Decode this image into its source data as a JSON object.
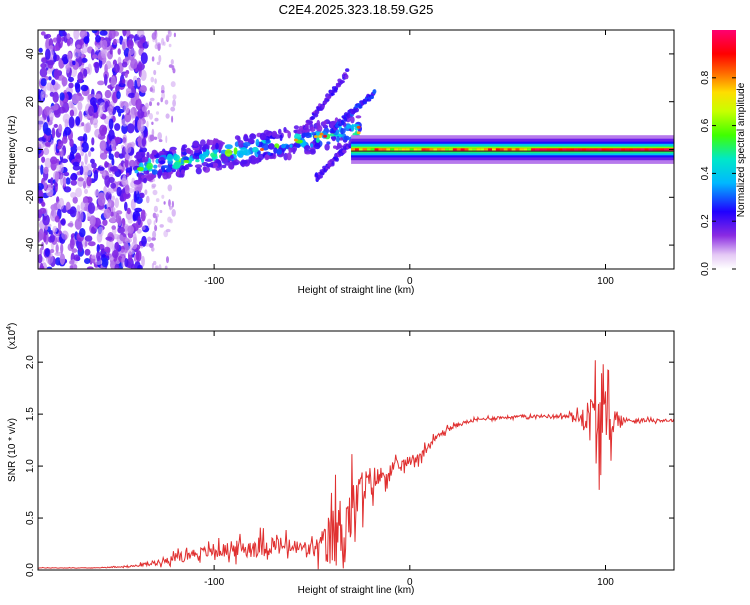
{
  "title": "C2E4.2025.323.18.59.G25",
  "colorbar": {
    "label": "Normalized spectral amplitude",
    "ticks": [
      "0.0",
      "0.2",
      "0.4",
      "0.6",
      "0.8"
    ],
    "tick_values": [
      0.0,
      0.2,
      0.4,
      0.6,
      0.8
    ],
    "range": [
      0,
      1
    ]
  },
  "chart_data": [
    {
      "type": "heatmap",
      "name": "spectrogram",
      "xlabel": "Height of straight line (km)",
      "ylabel": "Frequency (Hz)",
      "xlim": [
        -190,
        135
      ],
      "ylim": [
        -50,
        50
      ],
      "xticks": [
        -100,
        0,
        100
      ],
      "xtick_labels": [
        "-100",
        "0",
        "100"
      ],
      "yticks": [
        -40,
        -20,
        0,
        20,
        40
      ],
      "ytick_labels": [
        "-40",
        "-20",
        "0",
        "20",
        "40"
      ],
      "features": [
        {
          "name": "scatter-noise-region",
          "x_range": [
            -190,
            -135
          ],
          "y_range": [
            -50,
            50
          ],
          "amplitude": 0.2
        },
        {
          "name": "drifting-band-segment",
          "x_start": -140,
          "x_end": -25,
          "freq_start": -8,
          "freq_end": 8,
          "amplitude": 0.6
        },
        {
          "name": "rising-streak",
          "x_start": -55,
          "x_end": -32,
          "freq_start": 8,
          "freq_end": 32,
          "amplitude": 0.2
        },
        {
          "name": "rising-streak",
          "x_start": -40,
          "x_end": -18,
          "freq_start": 8,
          "freq_end": 24,
          "amplitude": 0.25
        },
        {
          "name": "descending-streak",
          "x_start": -48,
          "x_end": -28,
          "freq_start": -12,
          "freq_end": 4,
          "amplitude": 0.2
        },
        {
          "name": "steady-carrier-line",
          "x_start": -30,
          "x_end": 135,
          "freq": 0,
          "amplitude": 1.0
        }
      ]
    },
    {
      "type": "line",
      "name": "snr",
      "xlabel": "Height of straight line (km)",
      "ylabel": "SNR (10 * v/v)",
      "scale_label": "(x10",
      "scale_exp": "4",
      "scale_close": ")",
      "xlim": [
        -190,
        135
      ],
      "ylim": [
        0,
        2.3
      ],
      "xticks": [
        -100,
        0,
        100
      ],
      "xtick_labels": [
        "-100",
        "0",
        "100"
      ],
      "yticks": [
        0.0,
        0.5,
        1.0,
        1.5,
        2.0
      ],
      "ytick_labels": [
        "0.0",
        "0.5",
        "1.0",
        "1.5",
        "2.0"
      ],
      "color": "#e03030",
      "x": [
        -190,
        -175,
        -160,
        -150,
        -140,
        -130,
        -120,
        -110,
        -100,
        -90,
        -80,
        -70,
        -60,
        -50,
        -45,
        -40,
        -35,
        -30,
        -25,
        -20,
        -15,
        -10,
        -5,
        0,
        5,
        10,
        15,
        20,
        25,
        30,
        40,
        50,
        60,
        70,
        80,
        85,
        90,
        95,
        100,
        105,
        110,
        120,
        135
      ],
      "baseline": [
        0.02,
        0.02,
        0.02,
        0.03,
        0.04,
        0.07,
        0.12,
        0.16,
        0.18,
        0.2,
        0.22,
        0.24,
        0.22,
        0.2,
        0.22,
        0.3,
        0.4,
        0.55,
        0.75,
        0.85,
        0.9,
        0.95,
        1.0,
        1.05,
        1.1,
        1.2,
        1.3,
        1.36,
        1.4,
        1.43,
        1.46,
        1.47,
        1.48,
        1.48,
        1.48,
        1.47,
        1.47,
        1.45,
        1.45,
        1.44,
        1.44,
        1.44,
        1.44
      ],
      "amplitude": [
        0.005,
        0.005,
        0.005,
        0.01,
        0.02,
        0.05,
        0.08,
        0.1,
        0.12,
        0.15,
        0.2,
        0.2,
        0.15,
        0.15,
        0.3,
        0.6,
        0.7,
        0.6,
        0.4,
        0.3,
        0.2,
        0.15,
        0.12,
        0.1,
        0.1,
        0.08,
        0.06,
        0.05,
        0.04,
        0.03,
        0.03,
        0.03,
        0.03,
        0.03,
        0.04,
        0.08,
        0.25,
        0.75,
        0.6,
        0.25,
        0.05,
        0.03,
        0.03
      ]
    }
  ]
}
